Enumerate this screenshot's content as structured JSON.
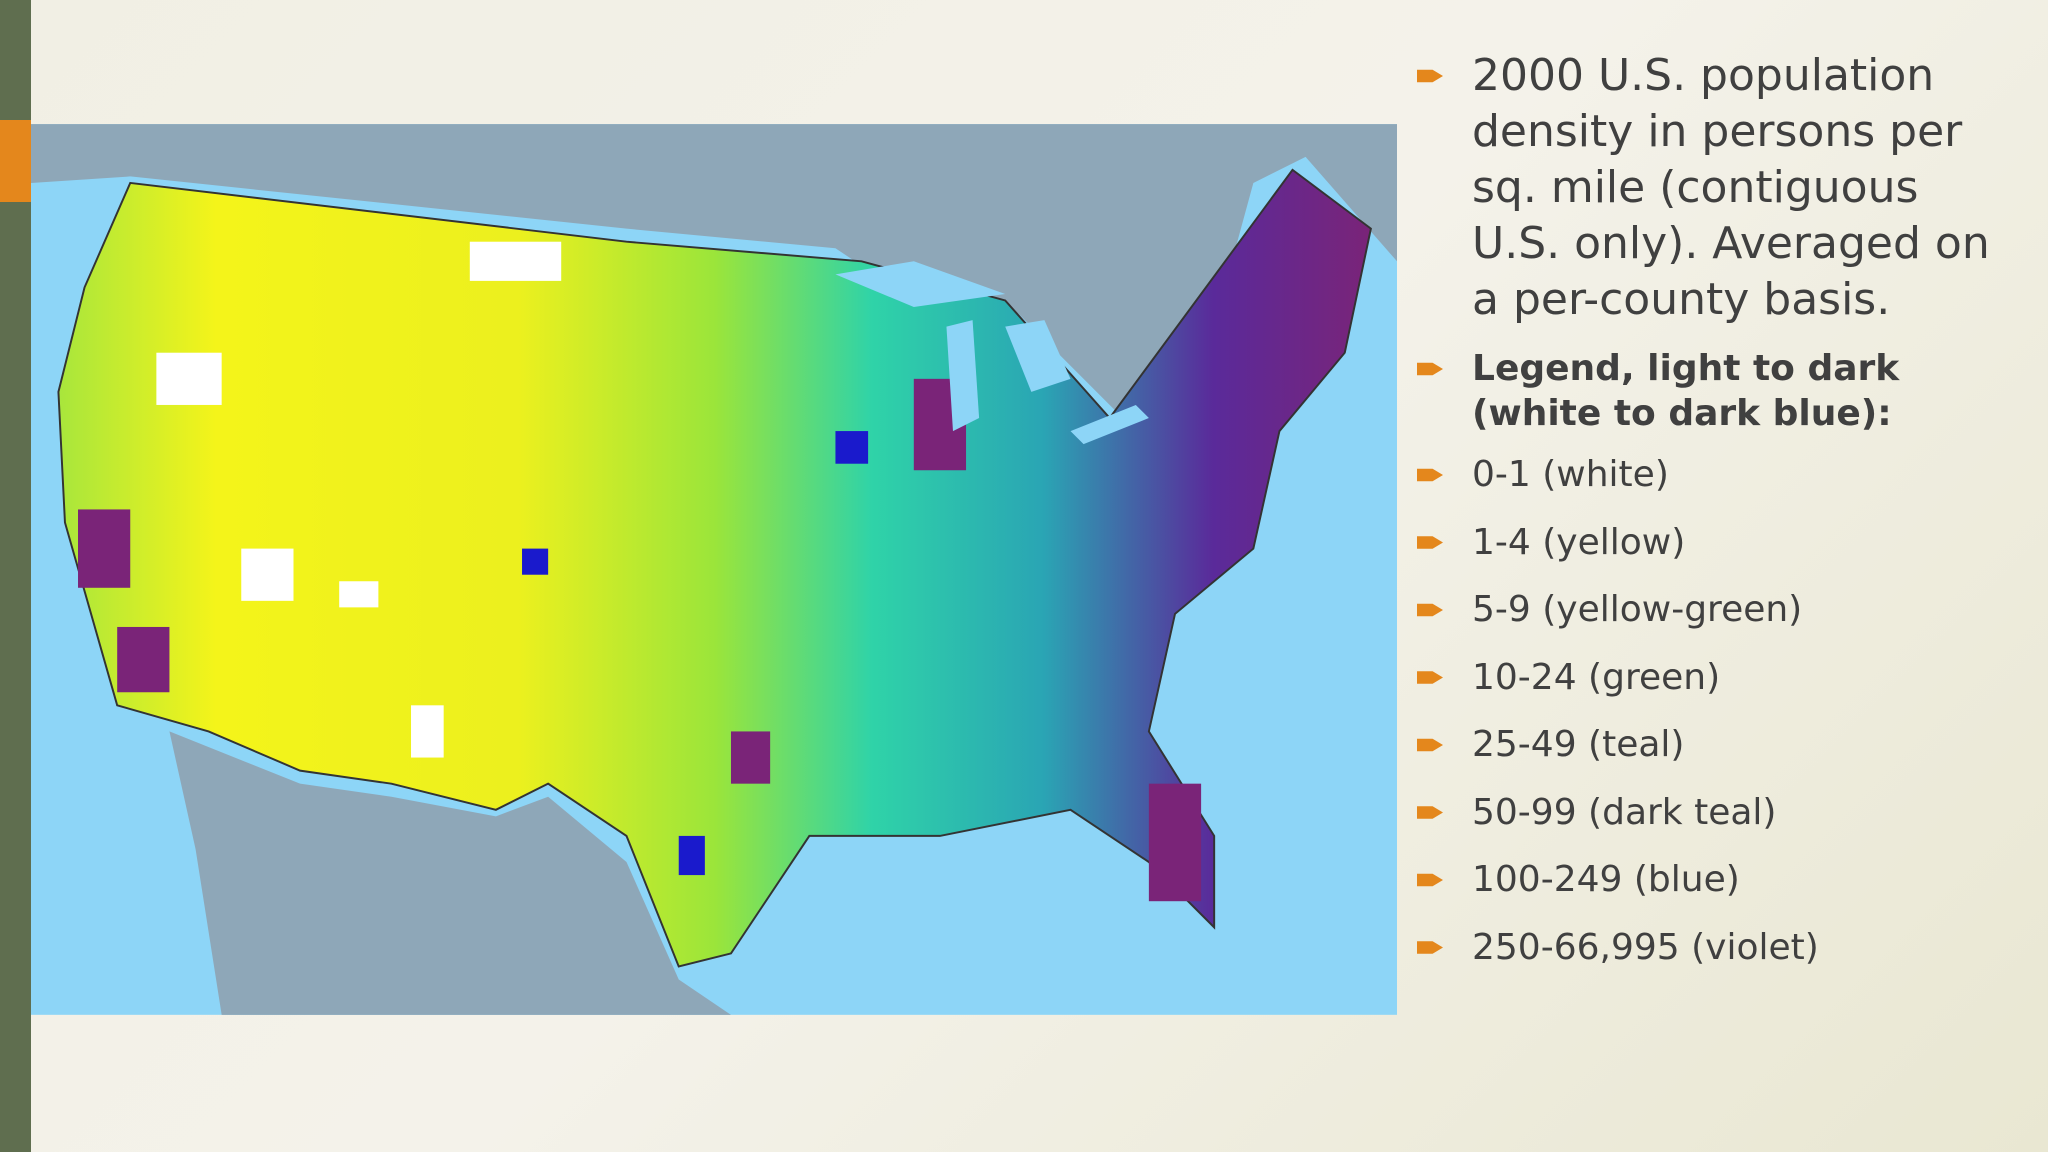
{
  "slide": {
    "bullets": [
      "2000 U.S. population density in persons per sq. mile (contiguous U.S. only). Averaged on a per-county basis.",
      "Legend, light to dark (white to dark blue):",
      "0-1 (white)",
      "1-4 (yellow)",
      "5-9 (yellow-green)",
      "10-24 (green)",
      "25-49 (teal)",
      "50-99 (dark teal)",
      "100-249 (blue)",
      "250-66,995 (violet)"
    ]
  }
}
